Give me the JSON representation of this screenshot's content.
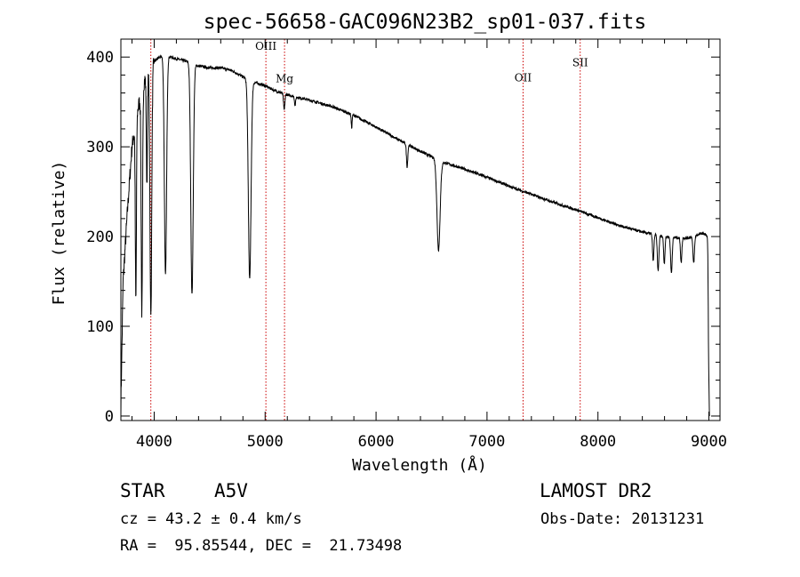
{
  "chart_data": {
    "type": "line",
    "title": "spec-56658-GAC096N23B2_sp01-037.fits",
    "xlabel": "Wavelength (Å)",
    "ylabel": "Flux (relative)",
    "xlim": [
      3700,
      9100
    ],
    "ylim": [
      -5,
      420
    ],
    "xticks": [
      4000,
      5000,
      6000,
      7000,
      8000,
      9000
    ],
    "yticks": [
      0,
      100,
      200,
      300,
      400
    ],
    "grid": false,
    "line_color": "#000000",
    "marker_color": "#cc0000",
    "continuum_anchors": [
      [
        3700,
        10
      ],
      [
        3720,
        150
      ],
      [
        3760,
        230
      ],
      [
        3800,
        300
      ],
      [
        3850,
        340
      ],
      [
        3900,
        370
      ],
      [
        3950,
        385
      ],
      [
        4000,
        395
      ],
      [
        4050,
        400
      ],
      [
        4100,
        402
      ],
      [
        4200,
        398
      ],
      [
        4300,
        395
      ],
      [
        4400,
        390
      ],
      [
        4500,
        388
      ],
      [
        4600,
        388
      ],
      [
        4700,
        385
      ],
      [
        4800,
        378
      ],
      [
        4900,
        372
      ],
      [
        5000,
        368
      ],
      [
        5100,
        362
      ],
      [
        5200,
        358
      ],
      [
        5400,
        352
      ],
      [
        5600,
        345
      ],
      [
        5800,
        335
      ],
      [
        6000,
        322
      ],
      [
        6200,
        308
      ],
      [
        6400,
        295
      ],
      [
        6600,
        283
      ],
      [
        6800,
        275
      ],
      [
        7000,
        266
      ],
      [
        7200,
        256
      ],
      [
        7400,
        247
      ],
      [
        7600,
        238
      ],
      [
        7800,
        230
      ],
      [
        8000,
        221
      ],
      [
        8200,
        212
      ],
      [
        8400,
        205
      ],
      [
        8600,
        200
      ],
      [
        8800,
        198
      ],
      [
        8950,
        204
      ],
      [
        8990,
        200
      ]
    ],
    "absorption_lines": [
      {
        "center": 3835,
        "depth": 200,
        "width": 5
      },
      {
        "center": 3889,
        "depth": 250,
        "width": 6
      },
      {
        "center": 3934,
        "depth": 120,
        "width": 5
      },
      {
        "center": 3970,
        "depth": 280,
        "width": 8
      },
      {
        "center": 4102,
        "depth": 245,
        "width": 10
      },
      {
        "center": 4341,
        "depth": 258,
        "width": 11
      },
      {
        "center": 4861,
        "depth": 222,
        "width": 12
      },
      {
        "center": 5172,
        "depth": 18,
        "width": 6
      },
      {
        "center": 5270,
        "depth": 10,
        "width": 5
      },
      {
        "center": 5780,
        "depth": 15,
        "width": 4
      },
      {
        "center": 6280,
        "depth": 25,
        "width": 6
      },
      {
        "center": 6563,
        "depth": 100,
        "width": 14
      },
      {
        "center": 8498,
        "depth": 30,
        "width": 6
      },
      {
        "center": 8542,
        "depth": 40,
        "width": 7
      },
      {
        "center": 8598,
        "depth": 30,
        "width": 6
      },
      {
        "center": 8662,
        "depth": 40,
        "width": 7
      },
      {
        "center": 8750,
        "depth": 28,
        "width": 6
      },
      {
        "center": 8863,
        "depth": 30,
        "width": 7
      },
      {
        "center": 9000,
        "depth": 160,
        "width": 5
      }
    ],
    "line_markers": [
      {
        "label": "",
        "wavelength": 3970,
        "label_flux": null
      },
      {
        "label": "OIII",
        "wavelength": 5007,
        "label_flux": 408
      },
      {
        "label": "Mg",
        "wavelength": 5175,
        "label_flux": 372
      },
      {
        "label": "OII",
        "wavelength": 7325,
        "label_flux": 373
      },
      {
        "label": "SII",
        "wavelength": 7840,
        "label_flux": 390
      }
    ]
  },
  "info": {
    "object_type": "STAR",
    "subclass": "A5V",
    "survey": "LAMOST DR2",
    "cz": "cz = 43.2 ± 0.4 km/s",
    "obs_date": "Obs-Date: 20131231",
    "coords": "RA =  95.85544, DEC =  21.73498"
  }
}
